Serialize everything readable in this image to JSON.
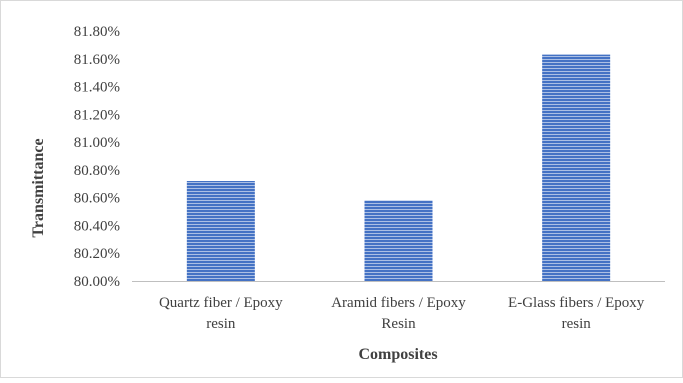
{
  "chart_data": {
    "type": "bar",
    "title": "",
    "xlabel": "Composites",
    "ylabel": "Transmittance",
    "categories": [
      [
        "Quartz fiber / Epoxy",
        "resin"
      ],
      [
        "Aramid fibers / Epoxy",
        "Resin"
      ],
      [
        "E-Glass fibers / Epoxy",
        "resin"
      ]
    ],
    "values": [
      80.72,
      80.58,
      81.63
    ],
    "value_unit": "%",
    "ylim": [
      80.0,
      81.8
    ],
    "yticks": [
      "80.00%",
      "80.20%",
      "80.40%",
      "80.60%",
      "80.80%",
      "81.00%",
      "81.20%",
      "81.40%",
      "81.60%",
      "81.80%"
    ],
    "grid": false,
    "legend": "none",
    "colors": {
      "bar": "#4472c4",
      "bar_stripe": "#ffffff",
      "axis": "#bfbfbf",
      "frame": "#d9d9d9",
      "text": "#404040"
    }
  }
}
